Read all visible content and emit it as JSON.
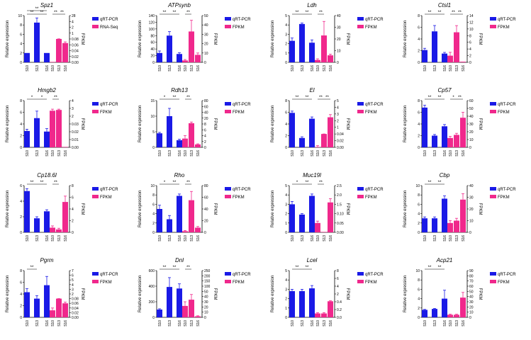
{
  "chart_data": [
    {
      "type": "bar",
      "title": "Spz1",
      "categories": [
        "S10",
        "S13",
        "S16"
      ],
      "ylabel": "Relative expression",
      "y2label": "",
      "left": {
        "ylim": [
          0,
          10
        ],
        "ticks": [
          0,
          2,
          4,
          6,
          8,
          10
        ],
        "name": "qRT-PCR",
        "values": [
          2.0,
          8.5,
          2.0
        ],
        "err": [
          0,
          1.0,
          0
        ]
      },
      "right": {
        "ticks": [
          "0.00",
          "0.02",
          "0.04",
          "0.06",
          "0.08",
          "1",
          "2",
          "4",
          "28"
        ],
        "name": "RNA-Seq",
        "values": [
          0.0,
          0.085,
          0.066
        ],
        "err": [
          0,
          0.015,
          0.004
        ]
      },
      "sig": [
        "**",
        "**",
        "**",
        "**",
        "**"
      ]
    },
    {
      "type": "bar",
      "title": "ATPsynb",
      "categories": [
        "S10",
        "S13",
        "S16"
      ],
      "ylabel": "Relative expression",
      "y2label": "",
      "left": {
        "ylim": [
          0,
          140
        ],
        "ticks": [
          0,
          20,
          40,
          60,
          80,
          100,
          120,
          140
        ],
        "name": "qRT-PCR",
        "values": [
          28,
          80,
          25
        ],
        "err": [
          6,
          12,
          4
        ]
      },
      "right": {
        "ticks": [
          "0",
          "10",
          "20",
          "30",
          "40",
          "50"
        ],
        "name": "FPKM",
        "values": [
          2,
          33,
          8
        ],
        "err": [
          1,
          12,
          2
        ]
      },
      "sig": [
        "**",
        "**",
        "**"
      ]
    },
    {
      "type": "bar",
      "title": "Ldh",
      "categories": [
        "S10",
        "S13",
        "S16"
      ],
      "ylabel": "Relative expression",
      "y2label": "",
      "left": {
        "ylim": [
          0,
          5
        ],
        "ticks": [
          0,
          1,
          2,
          3,
          4,
          5
        ],
        "name": "qRT-PCR",
        "values": [
          2.3,
          4.1,
          2.1
        ],
        "err": [
          0.3,
          0.1,
          0.3
        ]
      },
      "right": {
        "ticks": [
          "0",
          "10",
          "20",
          "30",
          "40"
        ],
        "name": "FPKM",
        "values": [
          2,
          23,
          6
        ],
        "err": [
          1,
          12,
          1
        ]
      },
      "sig": [
        "**",
        "**",
        "**"
      ]
    },
    {
      "type": "bar",
      "title": "Ctsl1",
      "categories": [
        "S10",
        "S13",
        "S16"
      ],
      "ylabel": "Relative expression",
      "y2label": "",
      "left": {
        "ylim": [
          0,
          8
        ],
        "ticks": [
          0,
          2,
          4,
          6,
          8
        ],
        "name": "qRT-PCR",
        "values": [
          2.1,
          5.3,
          1.5
        ],
        "err": [
          0.3,
          1.0,
          0.2
        ]
      },
      "right": {
        "ticks": [
          "0",
          "2",
          "4",
          "6",
          "8",
          "10",
          "12",
          "14"
        ],
        "name": "FPKM",
        "values": [
          2,
          9,
          0.2
        ],
        "err": [
          1,
          2,
          0
        ]
      },
      "sig": [
        "**",
        "**",
        "**",
        "**"
      ]
    },
    {
      "type": "bar",
      "title": "Hmgb2",
      "categories": [
        "S10",
        "S13",
        "S16"
      ],
      "ylabel": "Relative expression",
      "y2label": "",
      "left": {
        "ylim": [
          0,
          8
        ],
        "ticks": [
          0,
          2,
          4,
          6,
          8
        ],
        "name": "qRT-PCR",
        "values": [
          2.8,
          5.0,
          2.7
        ],
        "err": [
          0.3,
          1.2,
          0.5
        ]
      },
      "right": {
        "ticks": [
          "0.00",
          "0.01",
          "0.02",
          "0.03",
          "2",
          "3",
          "4"
        ],
        "name": "FPKM",
        "values": [
          2.7,
          2.8,
          0.0
        ],
        "err": [
          0.2,
          0.1,
          0
        ]
      },
      "sig": [
        "*",
        "*",
        "**"
      ]
    },
    {
      "type": "bar",
      "title": "Rdh13",
      "categories": [
        "S10",
        "S13",
        "S16"
      ],
      "ylabel": "Relative expression",
      "y2label": "",
      "left": {
        "ylim": [
          0,
          15
        ],
        "ticks": [
          0,
          5,
          10,
          15
        ],
        "name": "qRT-PCR",
        "values": [
          4.5,
          10,
          2.3
        ],
        "err": [
          0.3,
          2.5,
          0.3
        ]
      },
      "right": {
        "ticks": [
          "0",
          "2",
          "4",
          "6",
          "8",
          "20",
          "40",
          "60",
          "80"
        ],
        "name": "FPKM",
        "values": [
          3,
          9.5,
          1
        ],
        "err": [
          1,
          2.5,
          0.2
        ]
      },
      "sig": [
        "*",
        "**",
        "**"
      ]
    },
    {
      "type": "bar",
      "title": "El",
      "categories": [
        "S10",
        "S13",
        "S16"
      ],
      "ylabel": "Relative expression",
      "y2label": "",
      "left": {
        "ylim": [
          0,
          8
        ],
        "ticks": [
          0,
          2,
          4,
          6,
          8
        ],
        "name": "qRT-PCR",
        "values": [
          5.9,
          1.6,
          4.9
        ],
        "err": [
          0.3,
          0.2,
          0.3
        ]
      },
      "right": {
        "ticks": [
          "0.00",
          "0.02",
          "0.04",
          "1",
          "2",
          "3",
          "4",
          "5"
        ],
        "name": "FPKM",
        "values": [
          0.0,
          0.04,
          2.5
        ],
        "err": [
          0.005,
          0.005,
          0.4
        ]
      },
      "sig": [
        "**",
        "**",
        "**",
        "**"
      ]
    },
    {
      "type": "bar",
      "title": "Cp57",
      "categories": [
        "S10",
        "S13",
        "S16"
      ],
      "ylabel": "Relative expression",
      "y2label": "",
      "left": {
        "ylim": [
          0,
          8
        ],
        "ticks": [
          0,
          2,
          4,
          6,
          8
        ],
        "name": "qRT-PCR",
        "values": [
          6.8,
          2.0,
          3.6
        ],
        "err": [
          0.4,
          0.2,
          0.3
        ]
      },
      "right": {
        "ticks": [
          "0",
          "10",
          "20",
          "30",
          "40",
          "50",
          "60"
        ],
        "name": "FPKM",
        "values": [
          12,
          16,
          38
        ],
        "err": [
          2,
          2,
          7
        ]
      },
      "sig": [
        "**",
        "**",
        "*",
        "**"
      ]
    },
    {
      "type": "bar",
      "title": "Cp18.6l",
      "categories": [
        "S10",
        "S13",
        "S16"
      ],
      "ylabel": "Relative expression",
      "y2label": "",
      "left": {
        "ylim": [
          0,
          6
        ],
        "ticks": [
          0,
          2,
          4,
          6
        ],
        "name": "qRT-PCR",
        "values": [
          5.3,
          1.8,
          2.7
        ],
        "err": [
          0.3,
          0.2,
          0.2
        ]
      },
      "right": {
        "ticks": [
          "0",
          "2",
          "4",
          "6",
          "8"
        ],
        "name": "FPKM",
        "values": [
          0.8,
          0.5,
          5.2
        ],
        "err": [
          0.3,
          0.2,
          1.0
        ]
      },
      "sig": [
        "**",
        "**",
        "**"
      ]
    },
    {
      "type": "bar",
      "title": "Rho",
      "categories": [
        "S10",
        "S13",
        "S16"
      ],
      "ylabel": "Relative expression",
      "y2label": "",
      "left": {
        "ylim": [
          0,
          10
        ],
        "ticks": [
          0,
          2,
          4,
          6,
          8,
          10
        ],
        "name": "qRT-PCR",
        "values": [
          5.0,
          2.8,
          7.8
        ],
        "err": [
          0.8,
          0.8,
          0.4
        ]
      },
      "right": {
        "ticks": [
          "0",
          "20",
          "40",
          "60",
          "80"
        ],
        "name": "FPKM",
        "values": [
          2,
          55,
          8
        ],
        "err": [
          1,
          15,
          2
        ]
      },
      "sig": [
        "*",
        "**",
        "**"
      ]
    },
    {
      "type": "bar",
      "title": "Muc19l",
      "categories": [
        "S10",
        "S13",
        "S16"
      ],
      "ylabel": "Relative expression",
      "y2label": "",
      "left": {
        "ylim": [
          0,
          5
        ],
        "ticks": [
          0,
          1,
          2,
          3,
          4,
          5
        ],
        "name": "qRT-PCR",
        "values": [
          3.0,
          1.9,
          3.9
        ],
        "err": [
          0.3,
          0.1,
          0.2
        ]
      },
      "right": {
        "ticks": [
          "0.00",
          "0.05",
          "0.10",
          "1.5",
          "2.0",
          "2.5"
        ],
        "name": "FPKM",
        "values": [
          0.05,
          0.0,
          1.6
        ],
        "err": [
          0.01,
          0,
          0.2
        ]
      },
      "sig": [
        "*",
        "**",
        "**"
      ]
    },
    {
      "type": "bar",
      "title": "Cbp",
      "categories": [
        "S10",
        "S13",
        "S16"
      ],
      "ylabel": "Relative expression",
      "y2label": "",
      "left": {
        "ylim": [
          0,
          10
        ],
        "ticks": [
          0,
          2,
          4,
          6,
          8,
          10
        ],
        "name": "qRT-PCR",
        "values": [
          3.0,
          3.0,
          7.2
        ],
        "err": [
          0.3,
          0.3,
          0.6
        ]
      },
      "right": {
        "ticks": [
          "0",
          "10",
          "20",
          "30",
          "40"
        ],
        "name": "FPKM",
        "values": [
          8,
          10,
          28
        ],
        "err": [
          2,
          2,
          5
        ]
      },
      "sig": [
        "**",
        "**"
      ]
    },
    {
      "type": "bar",
      "title": "Pgrm",
      "categories": [
        "S10",
        "S13",
        "S16"
      ],
      "ylabel": "Relative expression",
      "y2label": "",
      "left": {
        "ylim": [
          0,
          8
        ],
        "ticks": [
          0,
          2,
          4,
          6,
          8
        ],
        "name": "qRT-PCR",
        "values": [
          4.3,
          3.2,
          5.5
        ],
        "err": [
          0.6,
          0.5,
          1.5
        ]
      },
      "right": {
        "ticks": [
          "0.00",
          "0.02",
          "0.04",
          "0.06",
          "0.08",
          "2",
          "3",
          "4",
          "5",
          "6",
          "7"
        ],
        "name": "FPKM",
        "values": [
          0.03,
          0.085,
          0.06
        ],
        "err": [
          0.01,
          0.015,
          0.005
        ]
      },
      "sig": [
        "**"
      ]
    },
    {
      "type": "bar",
      "title": "Dnl",
      "categories": [
        "S10",
        "S13",
        "S16"
      ],
      "ylabel": "Relative expression",
      "y2label": "",
      "left": {
        "ylim": [
          0,
          600
        ],
        "ticks": [
          0,
          200,
          400,
          600
        ],
        "name": "qRT-PCR",
        "values": [
          100,
          390,
          370
        ],
        "err": [
          10,
          120,
          60
        ]
      },
      "right": {
        "ticks": [
          "0",
          "10",
          "20",
          "30",
          "40",
          "50",
          "100",
          "150",
          "200",
          "250"
        ],
        "name": "FPKM",
        "values": [
          22,
          34,
          2
        ],
        "err": [
          8,
          10,
          1
        ]
      },
      "sig": [
        "**",
        "**",
        "**"
      ]
    },
    {
      "type": "bar",
      "title": "Lcel",
      "categories": [
        "S10",
        "S13",
        "S16"
      ],
      "ylabel": "Relative expression",
      "y2label": "",
      "left": {
        "ylim": [
          0,
          5
        ],
        "ticks": [
          0,
          1,
          2,
          3,
          4,
          5
        ],
        "name": "qRT-PCR",
        "values": [
          2.8,
          2.8,
          3.1
        ],
        "err": [
          0.2,
          0.2,
          0.3
        ]
      },
      "right": {
        "ticks": [
          "0.0",
          "0.2",
          "0.4",
          "2",
          "4",
          "6",
          "8"
        ],
        "name": "FPKM",
        "values": [
          0.1,
          0.1,
          0.5
        ],
        "err": [
          0.02,
          0.02,
          0.1
        ]
      },
      "sig": [
        "**",
        "**"
      ]
    },
    {
      "type": "bar",
      "title": "Acp21",
      "categories": [
        "S10",
        "S13",
        "S16"
      ],
      "ylabel": "Relative expression",
      "y2label": "",
      "left": {
        "ylim": [
          0,
          10
        ],
        "ticks": [
          0,
          2,
          4,
          6,
          8,
          10
        ],
        "name": "qRT-PCR",
        "values": [
          1.6,
          1.8,
          4.0
        ],
        "err": [
          0.1,
          0.1,
          1.8
        ]
      },
      "right": {
        "ticks": [
          "0",
          "10",
          "20",
          "30",
          "40",
          "50",
          "60",
          "70",
          "80",
          "90"
        ],
        "name": "FPKM",
        "values": [
          5,
          5,
          38
        ],
        "err": [
          1,
          1,
          10
        ]
      },
      "sig": [
        "**",
        "**"
      ]
    }
  ],
  "axis_right_label": "FPKM",
  "colors": {
    "qrt": "#1a1ae6",
    "fpkm": "#f0288c",
    "axis": "#000000"
  }
}
